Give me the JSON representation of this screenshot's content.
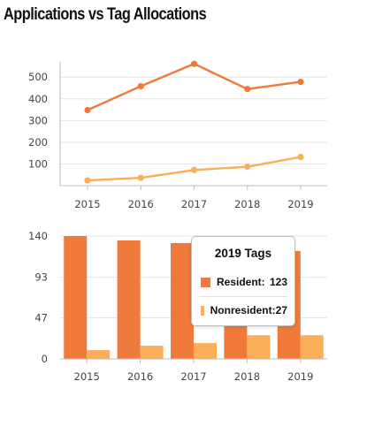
{
  "title": "Applications vs Tag Allocations",
  "colors": {
    "resident": "#F07A3C",
    "nonresident": "#FBAE58"
  },
  "chart_data": [
    {
      "type": "line",
      "x": [
        "2015",
        "2016",
        "2017",
        "2018",
        "2019"
      ],
      "series": [
        {
          "values": [
            348,
            458,
            561,
            445,
            478
          ]
        },
        {
          "values": [
            24,
            36,
            72,
            87,
            132
          ]
        }
      ],
      "yticks": [
        100,
        200,
        300,
        400,
        500
      ],
      "ylim": [
        0,
        570
      ],
      "grid": true
    },
    {
      "type": "bar",
      "categories": [
        "2015",
        "2016",
        "2017",
        "2018",
        "2019"
      ],
      "series": [
        {
          "name": "Resident",
          "values": [
            140,
            135,
            132,
            100,
            123
          ]
        },
        {
          "name": "Nonresident",
          "values": [
            10,
            15,
            18,
            27,
            27
          ]
        }
      ],
      "yticks": [
        0,
        47,
        93,
        140
      ],
      "ylim": [
        0,
        140
      ],
      "grid": true,
      "tooltip": {
        "title": "2019 Tags",
        "rows": [
          {
            "label": "Resident:",
            "value": "123"
          },
          {
            "label": "Nonresident:",
            "value": "27"
          }
        ]
      }
    }
  ]
}
